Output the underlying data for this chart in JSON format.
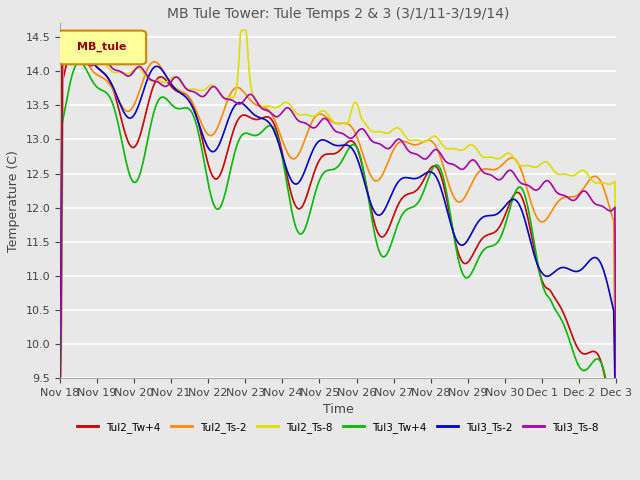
{
  "title": "MB Tule Tower: Tule Temps 2 & 3 (3/1/11-3/19/14)",
  "xlabel": "Time",
  "ylabel": "Temperature (C)",
  "ylim": [
    9.5,
    14.7
  ],
  "xlim": [
    0,
    15
  ],
  "background_color": "#e8e8e8",
  "plot_bg_color": "#e8e8e8",
  "grid_color": "#ffffff",
  "legend_box_color": "#ffff99",
  "legend_box_border": "#cc8800",
  "legend_label": "MB_tule",
  "x_tick_labels": [
    "Nov 18",
    "Nov 19",
    "Nov 20",
    "Nov 21",
    "Nov 22",
    "Nov 23",
    "Nov 24",
    "Nov 25",
    "Nov 26",
    "Nov 27",
    "Nov 28",
    "Nov 29",
    "Nov 30",
    "Dec 1",
    "Dec 2",
    "Dec 3"
  ],
  "series": [
    {
      "name": "Tul2_Tw+4",
      "color": "#cc0000"
    },
    {
      "name": "Tul2_Ts-2",
      "color": "#ff8800"
    },
    {
      "name": "Tul2_Ts-8",
      "color": "#dddd00"
    },
    {
      "name": "Tul3_Tw+4",
      "color": "#00bb00"
    },
    {
      "name": "Tul3_Ts-2",
      "color": "#0000cc"
    },
    {
      "name": "Tul3_Ts-8",
      "color": "#aa00aa"
    }
  ]
}
